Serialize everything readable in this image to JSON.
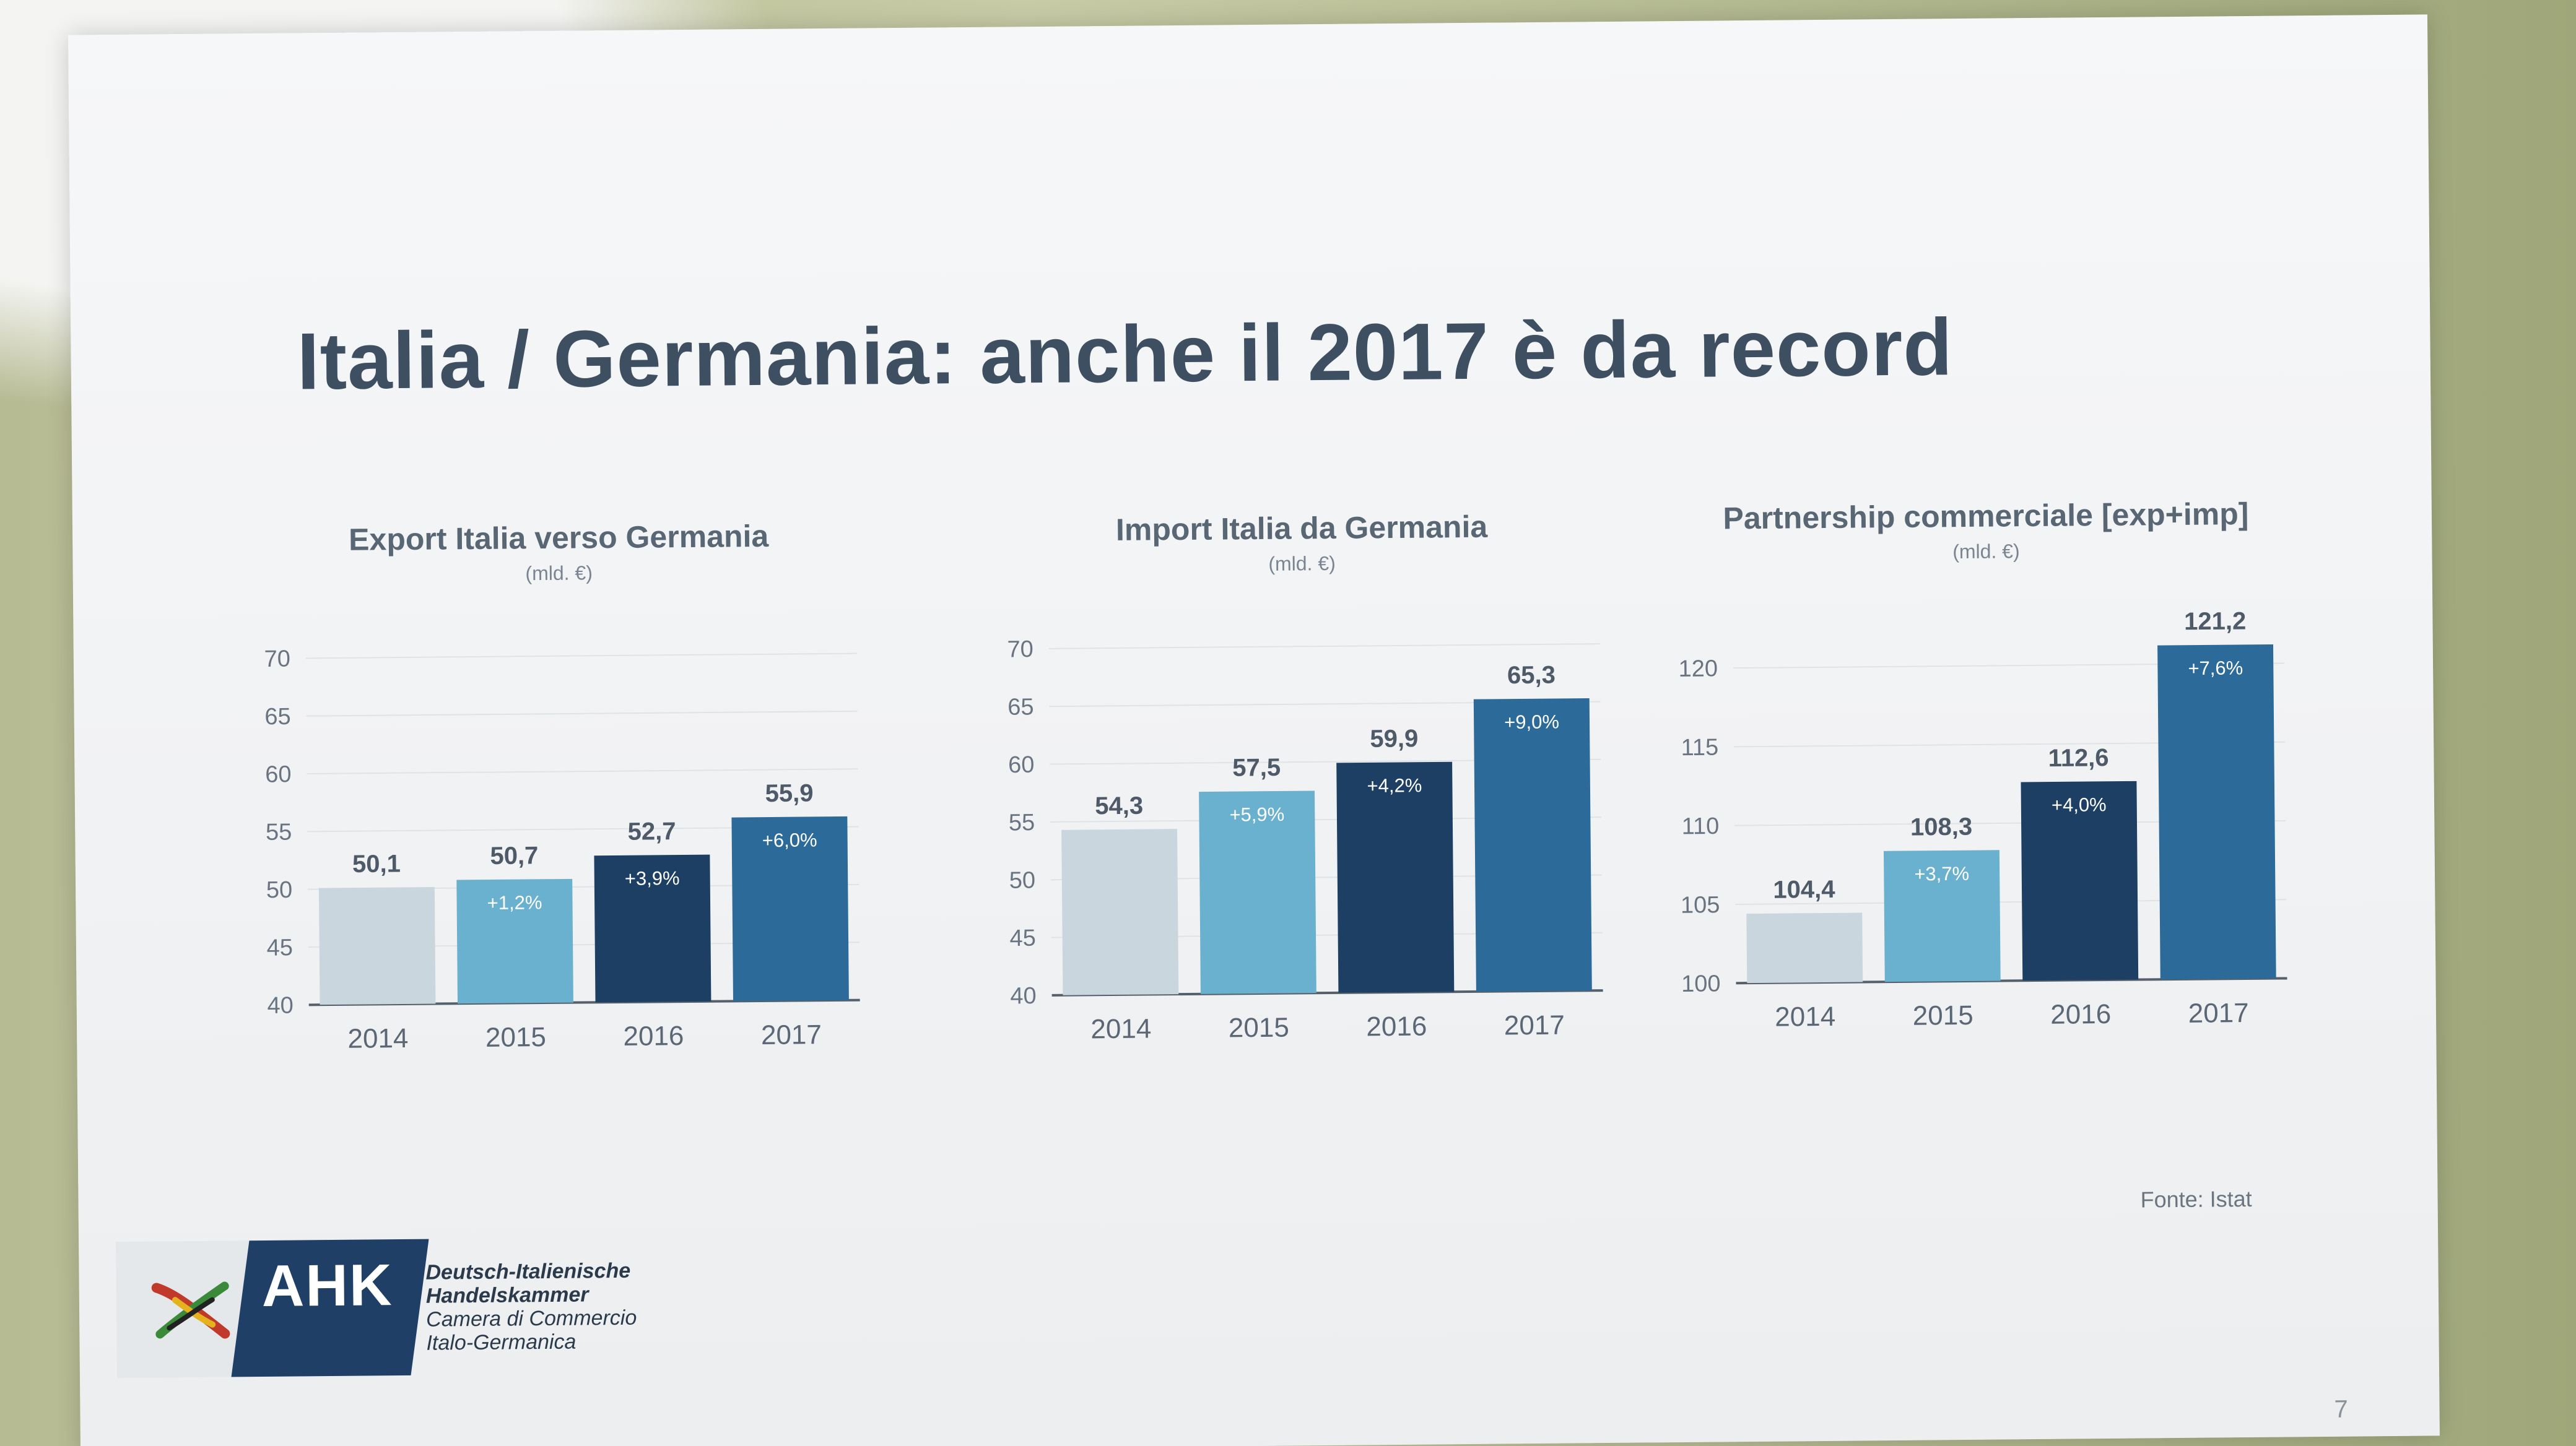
{
  "slide": {
    "title": "Italia / Germania: anche il 2017 è da record",
    "source": "Fonte: Istat",
    "page_number": "7"
  },
  "logo": {
    "mark": "AHK",
    "lines": [
      "Deutsch-Italienische",
      "Handelskammer",
      "Camera di Commercio",
      "Italo-Germanica"
    ]
  },
  "colors": {
    "c2014": "#c9d6de",
    "c2015": "#6ab0cf",
    "c2016": "#1d3f63",
    "c2017": "#2c6b99"
  },
  "chart_data": [
    {
      "type": "bar",
      "title": "Export Italia verso Germania",
      "unit": "(mld. €)",
      "categories": [
        "2014",
        "2015",
        "2016",
        "2017"
      ],
      "values": [
        50.1,
        50.7,
        52.7,
        55.9
      ],
      "value_labels": [
        "50,1",
        "50,7",
        "52,7",
        "55,9"
      ],
      "growth_labels": [
        "",
        "+1,2%",
        "+3,9%",
        "+6,0%"
      ],
      "ylim": [
        40,
        70
      ],
      "yticks": [
        40,
        45,
        50,
        55,
        60,
        65,
        70
      ],
      "grid": true
    },
    {
      "type": "bar",
      "title": "Import Italia da Germania",
      "unit": "(mld. €)",
      "categories": [
        "2014",
        "2015",
        "2016",
        "2017"
      ],
      "values": [
        54.3,
        57.5,
        59.9,
        65.3
      ],
      "value_labels": [
        "54,3",
        "57,5",
        "59,9",
        "65,3"
      ],
      "growth_labels": [
        "",
        "+5,9%",
        "+4,2%",
        "+9,0%"
      ],
      "ylim": [
        40,
        70
      ],
      "yticks": [
        40,
        45,
        50,
        55,
        60,
        65,
        70
      ],
      "grid": true
    },
    {
      "type": "bar",
      "title": "Partnership commerciale [exp+imp]",
      "unit": "(mld. €)",
      "categories": [
        "2014",
        "2015",
        "2016",
        "2017"
      ],
      "values": [
        104.4,
        108.3,
        112.6,
        121.2
      ],
      "value_labels": [
        "104,4",
        "108,3",
        "112,6",
        "121,2"
      ],
      "growth_labels": [
        "",
        "+3,7%",
        "+4,0%",
        "+7,6%"
      ],
      "ylim": [
        100,
        122
      ],
      "yticks": [
        100,
        105,
        110,
        115,
        120
      ],
      "grid": true
    }
  ]
}
